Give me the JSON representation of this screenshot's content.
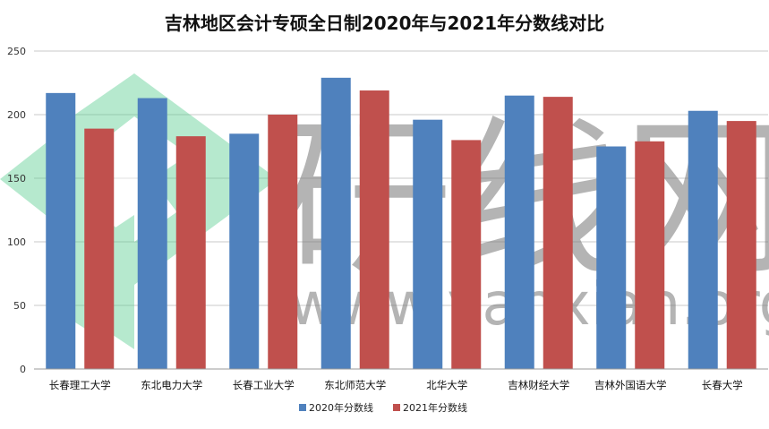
{
  "chart_data": {
    "type": "bar",
    "title": "吉林地区会计专硕全日制2020年与2021年分数线对比",
    "categories": [
      "长春理工大学",
      "东北电力大学",
      "长春工业大学",
      "东北师范大学",
      "北华大学",
      "吉林财经大学",
      "吉林外国语大学",
      "长春大学"
    ],
    "series": [
      {
        "name": "2020年分数线",
        "color": "#4f81bd",
        "values": [
          217,
          213,
          185,
          229,
          196,
          215,
          175,
          203
        ]
      },
      {
        "name": "2021年分数线",
        "color": "#c0504d",
        "values": [
          189,
          183,
          200,
          219,
          180,
          214,
          179,
          195
        ]
      }
    ],
    "ylim": [
      0,
      250
    ],
    "yticks": [
      0,
      50,
      100,
      150,
      200,
      250
    ],
    "grid": true,
    "legend_position": "bottom",
    "xlabel": "",
    "ylabel": ""
  },
  "watermark": {
    "text_cn": "研线网",
    "text_url": "www.yanxian.org"
  }
}
